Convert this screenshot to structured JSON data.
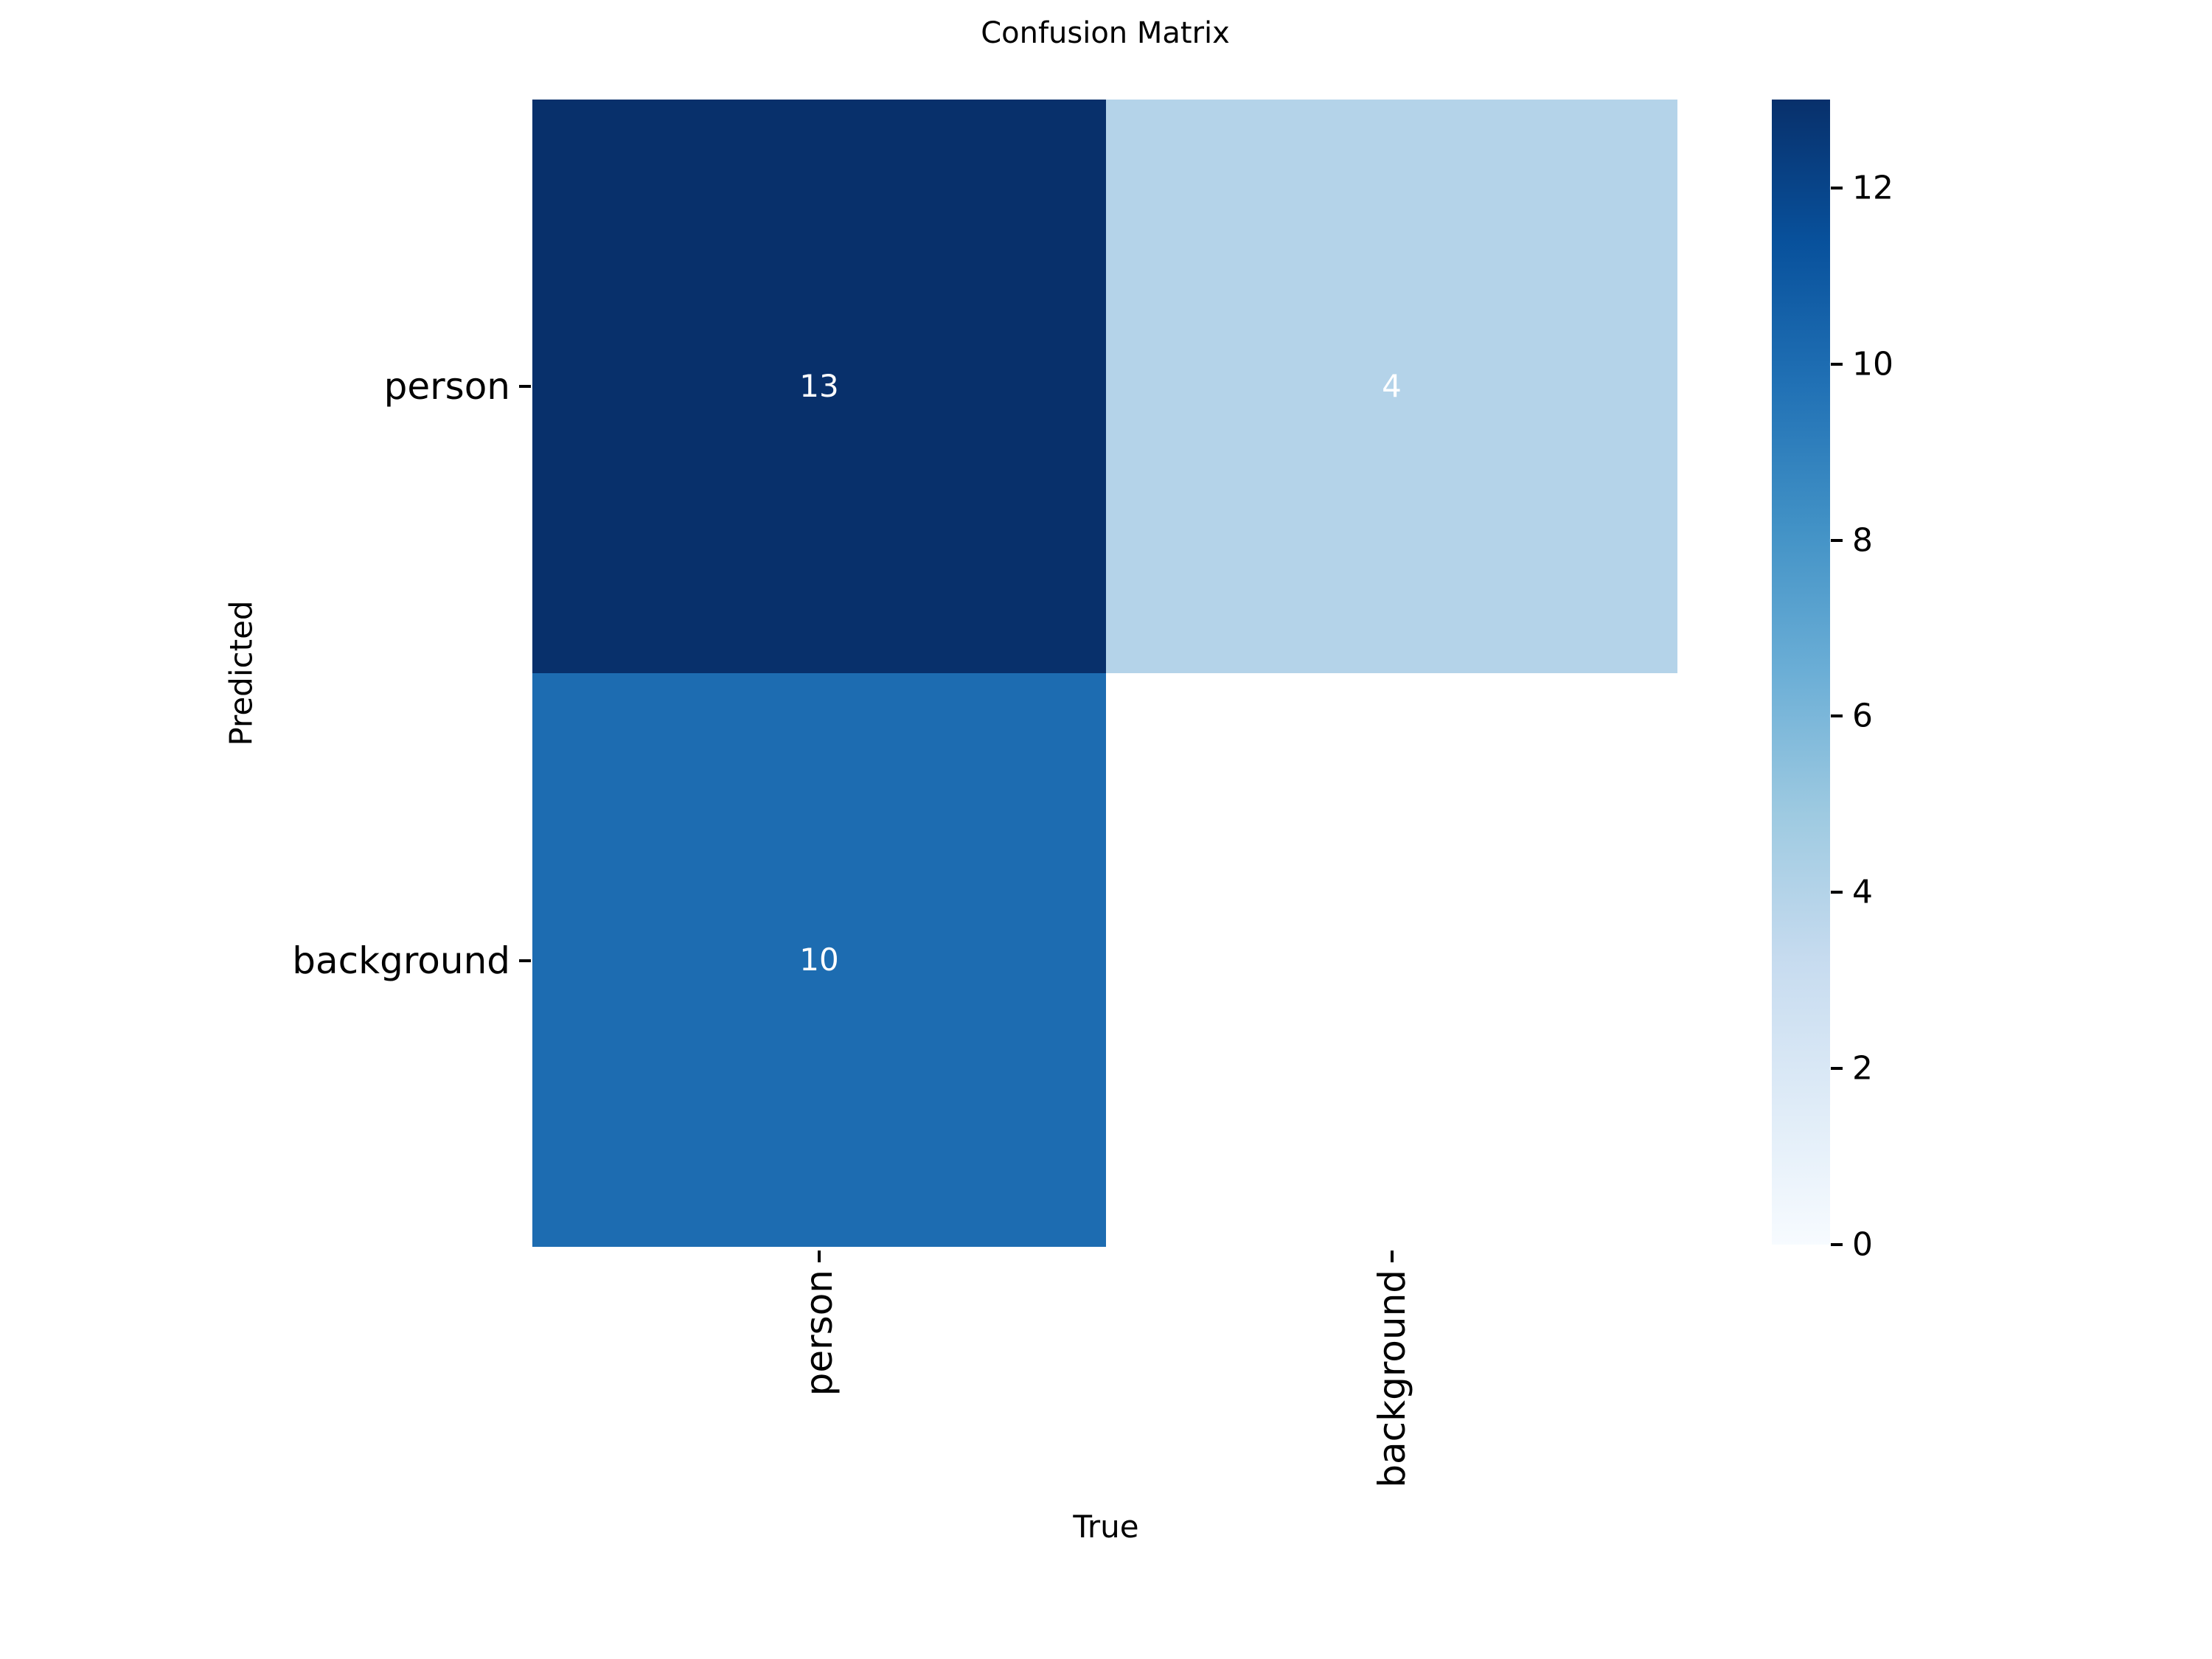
{
  "title": "Confusion Matrix",
  "chart_data": {
    "type": "heatmap",
    "title": "Confusion Matrix",
    "xlabel": "True",
    "ylabel": "Predicted",
    "x_categories": [
      "person",
      "background"
    ],
    "y_categories": [
      "person",
      "background"
    ],
    "matrix": [
      [
        13,
        4
      ],
      [
        10,
        null
      ]
    ],
    "cell_labels": [
      [
        "13",
        "4"
      ],
      [
        "10",
        ""
      ]
    ],
    "vmin": 0,
    "vmax": 13,
    "colormap": "Blues",
    "colormap_stops_bottom_to_top": [
      "#f7fbff",
      "#deebf7",
      "#c6dbef",
      "#9ecae1",
      "#6baed6",
      "#4292c6",
      "#2171b5",
      "#08519c",
      "#08306b"
    ],
    "cell_colors": [
      [
        "#08306b",
        "#b4d3e9"
      ],
      [
        "#1d6cb1",
        "#ffffff"
      ]
    ],
    "annotation_color": "#ffffff",
    "colorbar_tick_values_top_to_bottom": [
      12,
      10,
      8,
      6,
      4,
      2,
      0
    ],
    "colorbar_tick_labels_top_to_bottom": [
      "12",
      "10",
      "8",
      "6",
      "4",
      "2",
      "0"
    ],
    "legend_position": "right",
    "grid": false
  }
}
